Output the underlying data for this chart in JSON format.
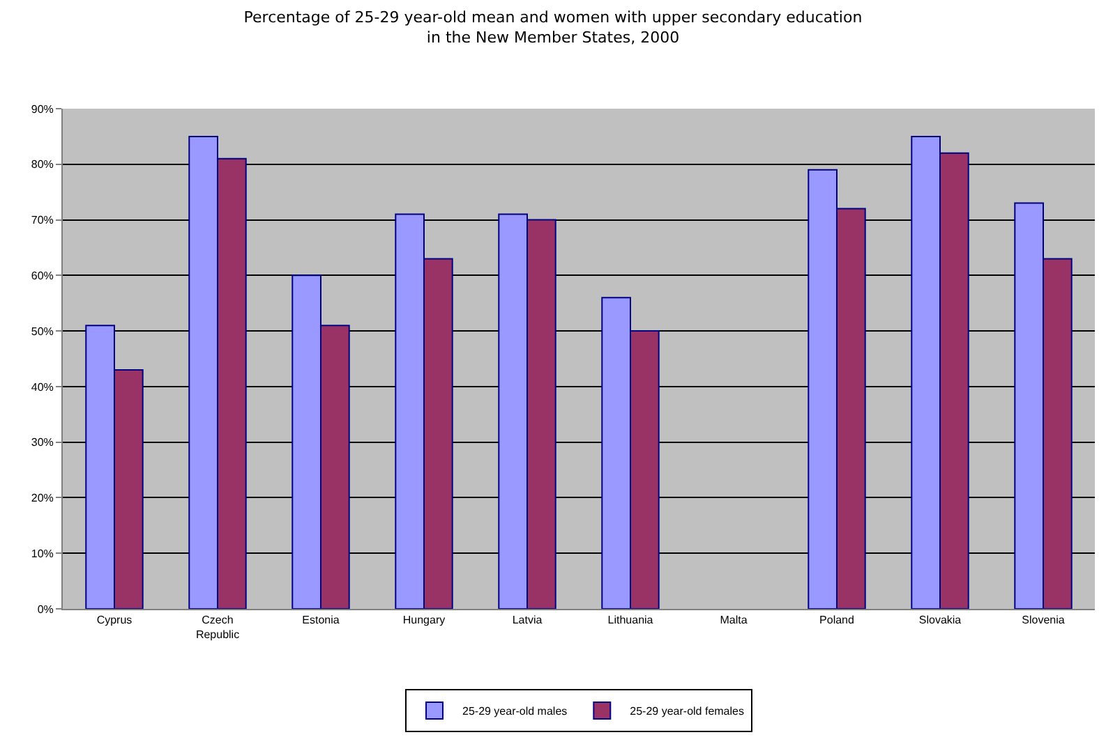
{
  "chart_data": {
    "type": "bar",
    "title": "Percentage of 25-29 year-old mean and women with upper secondary education\nin the New Member States, 2000",
    "categories": [
      "Cyprus",
      "Czech Republic",
      "Estonia",
      "Hungary",
      "Latvia",
      "Lithuania",
      "Malta",
      "Poland",
      "Slovakia",
      "Slovenia"
    ],
    "series": [
      {
        "name": "25-29 year-old males",
        "color": "#9999ff",
        "values": [
          51,
          85,
          60,
          71,
          71,
          56,
          null,
          79,
          85,
          73
        ]
      },
      {
        "name": "25-29 year-old females",
        "color": "#993366",
        "values": [
          43,
          81,
          51,
          63,
          70,
          50,
          null,
          72,
          82,
          63
        ]
      }
    ],
    "ylim": [
      0,
      90
    ],
    "yticks": [
      {
        "value": 0,
        "label": "0%"
      },
      {
        "value": 10,
        "label": "10%"
      },
      {
        "value": 20,
        "label": "20%"
      },
      {
        "value": 30,
        "label": "30%"
      },
      {
        "value": 40,
        "label": "40%"
      },
      {
        "value": 50,
        "label": "50%"
      },
      {
        "value": 60,
        "label": "60%"
      },
      {
        "value": 70,
        "label": "70%"
      },
      {
        "value": 80,
        "label": "80%"
      },
      {
        "value": 90,
        "label": "90%"
      }
    ],
    "grid": "y",
    "legend": "bottom"
  }
}
